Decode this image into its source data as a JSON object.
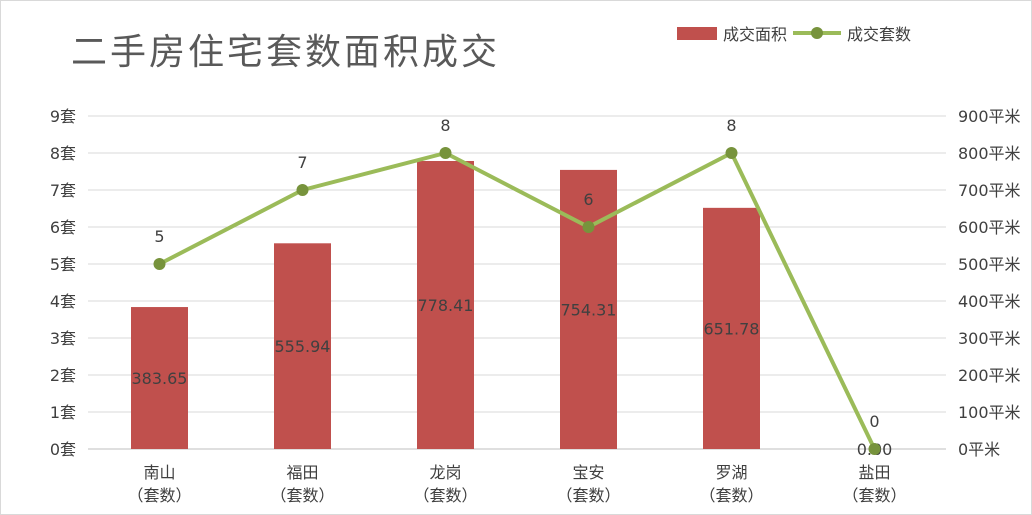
{
  "chart_data": {
    "type": "bar",
    "title": "二手房住宅套数面积成交",
    "categories": [
      "南山",
      "福田",
      "龙岗",
      "宝安",
      "罗湖",
      "盐田"
    ],
    "category_sublabel": "（套数）",
    "series": [
      {
        "name": "成交面积",
        "type": "bar",
        "axis": "right",
        "values": [
          383.65,
          555.94,
          778.41,
          754.31,
          651.78,
          0.0
        ],
        "labels": [
          "383.65",
          "555.94",
          "778.41",
          "754.31",
          "651.78",
          "0.00"
        ],
        "color": "#c0504d"
      },
      {
        "name": "成交套数",
        "type": "line",
        "axis": "left",
        "values": [
          5,
          7,
          8,
          6,
          8,
          0
        ],
        "labels": [
          "5",
          "7",
          "8",
          "6",
          "8",
          "0"
        ],
        "color": "#9bbb59",
        "marker_color": "#77933c"
      }
    ],
    "y_left": {
      "ylim": [
        0,
        9
      ],
      "ticks": [
        "0套",
        "1套",
        "2套",
        "3套",
        "4套",
        "5套",
        "6套",
        "7套",
        "8套",
        "9套"
      ]
    },
    "y_right": {
      "ylim": [
        0,
        900
      ],
      "ticks": [
        "0平米",
        "100平米",
        "200平米",
        "300平米",
        "400平米",
        "500平米",
        "600平米",
        "700平米",
        "800平米",
        "900平米"
      ]
    },
    "grid": true,
    "legend_position": "top-right"
  }
}
